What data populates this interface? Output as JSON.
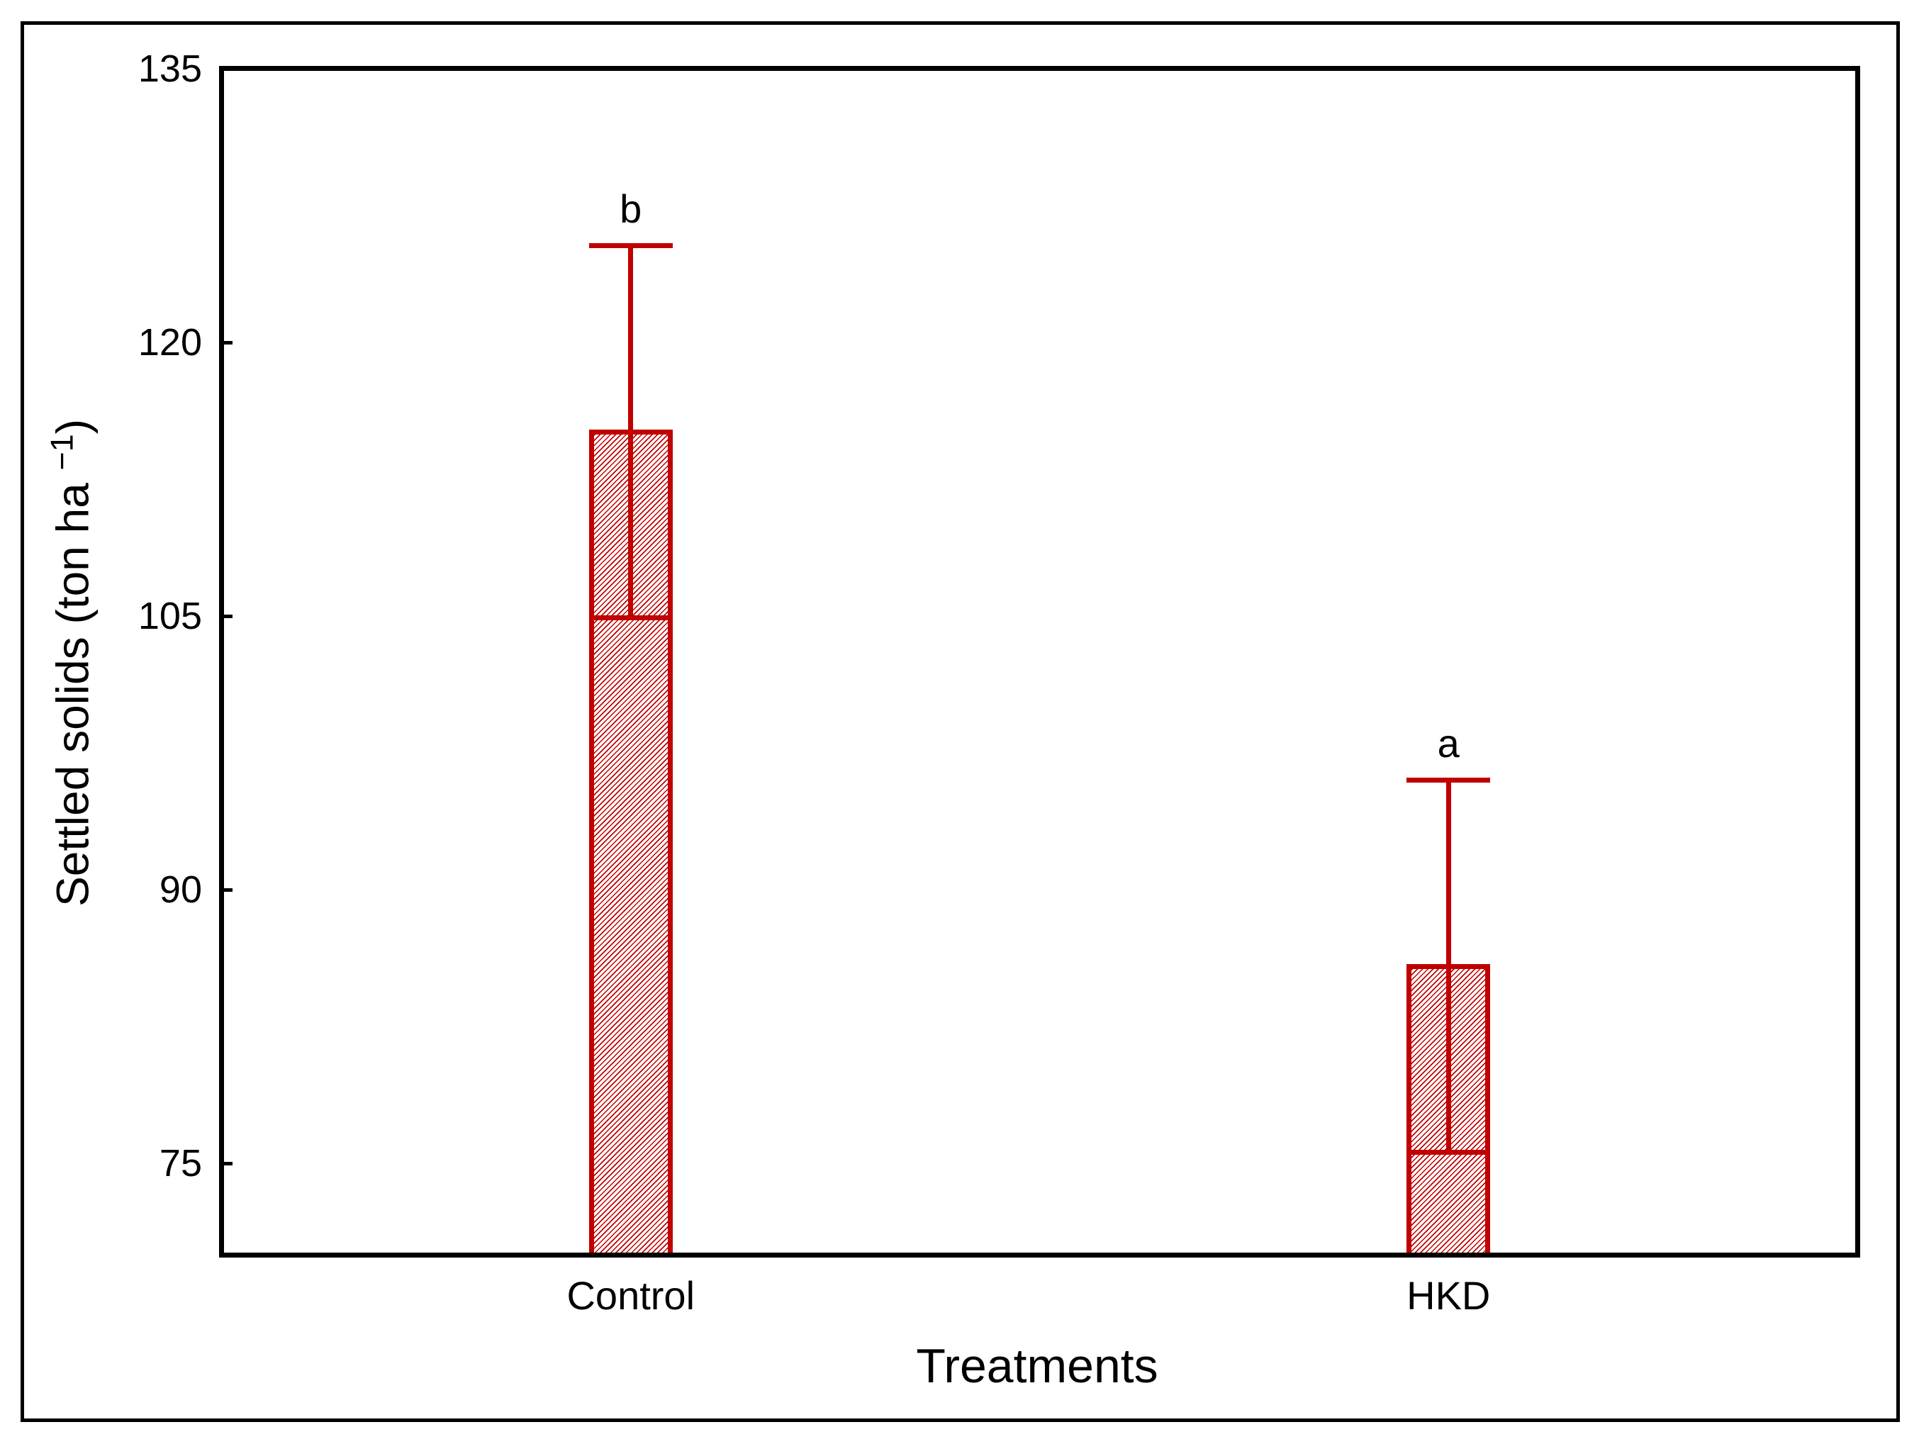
{
  "figure": {
    "background_color": "#ffffff",
    "border_color": "#000000",
    "accent_color": "#c00000"
  },
  "chart_data": {
    "type": "bar",
    "title": "",
    "xlabel": "Treatments",
    "ylabel": "Settled solids (ton ha −1)",
    "ylabel_parts": {
      "prefix": "Settled solids (ton ha ",
      "superscript": "−1",
      "suffix": ")"
    },
    "categories": [
      "Control",
      "HKD"
    ],
    "series": [
      {
        "name": "Settled solids",
        "values": [
          115.1,
          85.8
        ],
        "errors": [
          10.2,
          10.2
        ],
        "significance_letters": [
          "b",
          "a"
        ]
      }
    ],
    "ylim": [
      70,
      135
    ],
    "yticks": [
      75,
      90,
      105,
      120,
      135
    ],
    "grid": false,
    "legend_position": "none",
    "error_bar_style": "mean ± error; upper cap above bar, lower cap drawn across bar interior",
    "bar_outline_color": "#c00000",
    "bar_fill": "diagonal red hatch on white"
  }
}
